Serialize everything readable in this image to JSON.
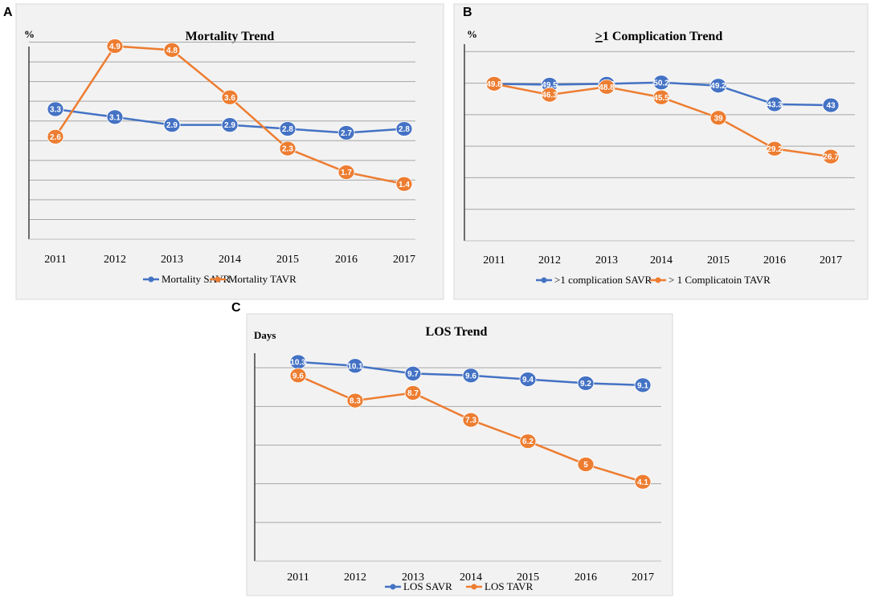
{
  "colors": {
    "savr": "#4472c4",
    "tavr": "#ed7d31",
    "panel_bg": "#f2f2f2",
    "grid": "#a6a6a6"
  },
  "chart_data": [
    {
      "id": "A",
      "panel_letter": "A",
      "type": "line",
      "title": "Mortality Trend",
      "ylabel": "%",
      "ylim": [
        0,
        5.5
      ],
      "gridlines": [
        0.5,
        1.0,
        1.5,
        2.0,
        2.5,
        3.0,
        3.5,
        4.0,
        4.5,
        5.0
      ],
      "categories": [
        "2011",
        "2012",
        "2013",
        "2014",
        "2015",
        "2016",
        "2017"
      ],
      "series": [
        {
          "name": "Mortality SAVR",
          "color": "#4472c4",
          "values": [
            3.3,
            3.1,
            2.9,
            2.9,
            2.8,
            2.7,
            2.8
          ],
          "labels": [
            "3.3",
            "3.1",
            "2.9",
            "2.9",
            "2.8",
            "2.7",
            "2.8"
          ]
        },
        {
          "name": "Mortality TAVR",
          "color": "#ed7d31",
          "values": [
            2.6,
            4.9,
            4.8,
            3.6,
            2.3,
            1.7,
            1.4
          ],
          "labels": [
            "2.6",
            "4.9",
            "4.8",
            "3.6",
            "2.3",
            "1.7",
            "1.4"
          ]
        }
      ]
    },
    {
      "id": "B",
      "panel_letter": "B",
      "type": "line",
      "title": "≥1 Complication Trend",
      "title_prefix": ">",
      "title_rest": "1 Complication Trend",
      "ylabel": "%",
      "ylim": [
        0,
        70
      ],
      "gridlines": [
        10,
        20,
        30,
        40,
        50,
        60
      ],
      "categories": [
        "2011",
        "2012",
        "2013",
        "2014",
        "2015",
        "2016",
        "2017"
      ],
      "series": [
        {
          "name": ">1 complication SAVR",
          "color": "#4472c4",
          "values": [
            49.8,
            49.5,
            49.8,
            50.2,
            49.2,
            43.3,
            43
          ],
          "labels": [
            "49.8",
            "49.5",
            "49.8",
            "50.2",
            "49.2",
            "43.3",
            "43"
          ]
        },
        {
          "name": "> 1 Complicatoin  TAVR",
          "color": "#ed7d31",
          "values": [
            49.8,
            46.3,
            48.8,
            45.5,
            39,
            29.2,
            26.7
          ],
          "labels": [
            "49.8",
            "46.3",
            "48.8",
            "45.5",
            "39",
            "29.2",
            "26.7"
          ]
        }
      ]
    },
    {
      "id": "C",
      "panel_letter": "C",
      "type": "line",
      "title": "LOS Trend",
      "ylabel": "Days",
      "ylim": [
        0,
        12
      ],
      "gridlines": [
        2,
        4,
        6,
        8,
        10
      ],
      "categories": [
        "2011",
        "2012",
        "2013",
        "2014",
        "2015",
        "2016",
        "2017"
      ],
      "series": [
        {
          "name": "LOS SAVR",
          "color": "#4472c4",
          "values": [
            10.3,
            10.1,
            9.7,
            9.6,
            9.4,
            9.2,
            9.1
          ],
          "labels": [
            "10.3",
            "10.1",
            "9.7",
            "9.6",
            "9.4",
            "9.2",
            "9.1"
          ]
        },
        {
          "name": "LOS  TAVR",
          "color": "#ed7d31",
          "values": [
            9.6,
            8.3,
            8.7,
            7.3,
            6.2,
            5,
            4.1
          ],
          "labels": [
            "9.6",
            "8.3",
            "8.7",
            "7.3",
            "6.2",
            "5",
            "4.1"
          ]
        }
      ]
    }
  ]
}
